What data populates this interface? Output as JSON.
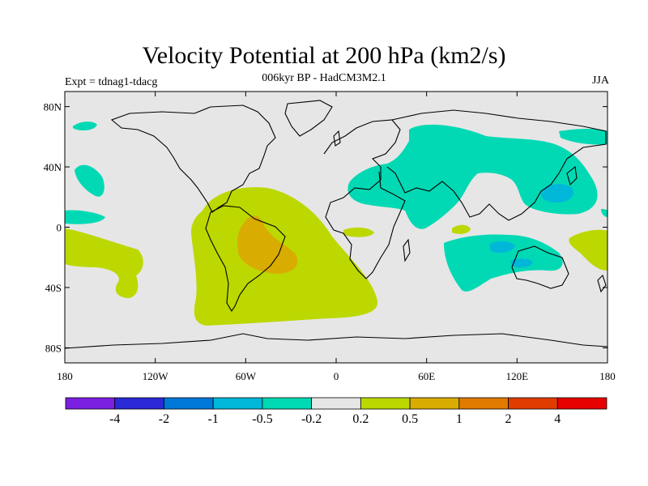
{
  "title": "Velocity Potential at 200 hPa (km2/s)",
  "subtitle": "006kyr BP - HadCM3M2.1",
  "experiment": "Expt = tdnag1-tdacg",
  "season": "JJA",
  "colors": {
    "background_field": "#e6e6e6",
    "positive_02_05": "#bcd800",
    "positive_05_1": "#d8ac00",
    "negative_02_05": "#00d9b4",
    "negative_05_1": "#00b7d9",
    "coastline": "#000000"
  },
  "axes": {
    "y_ticks": [
      {
        "value": 80,
        "label": "80N"
      },
      {
        "value": 40,
        "label": "40N"
      },
      {
        "value": 0,
        "label": "0"
      },
      {
        "value": -40,
        "label": "40S"
      },
      {
        "value": -80,
        "label": "80S"
      }
    ],
    "x_ticks": [
      {
        "value": -180,
        "label": "180"
      },
      {
        "value": -120,
        "label": "120W"
      },
      {
        "value": -60,
        "label": "60W"
      },
      {
        "value": 0,
        "label": "0"
      },
      {
        "value": 60,
        "label": "60E"
      },
      {
        "value": 120,
        "label": "120E"
      },
      {
        "value": 180,
        "label": "180"
      }
    ]
  },
  "colorbar": {
    "colors": [
      "#7b1fe0",
      "#2a2ad6",
      "#0078d7",
      "#00b7d9",
      "#00d9b4",
      "#e6e6e6",
      "#bcd800",
      "#d8ac00",
      "#e07b00",
      "#e03c00",
      "#e60000"
    ],
    "labels": [
      "-4",
      "-2",
      "-1",
      "-0.5",
      "-0.2",
      "0.2",
      "0.5",
      "1",
      "2",
      "4"
    ]
  }
}
